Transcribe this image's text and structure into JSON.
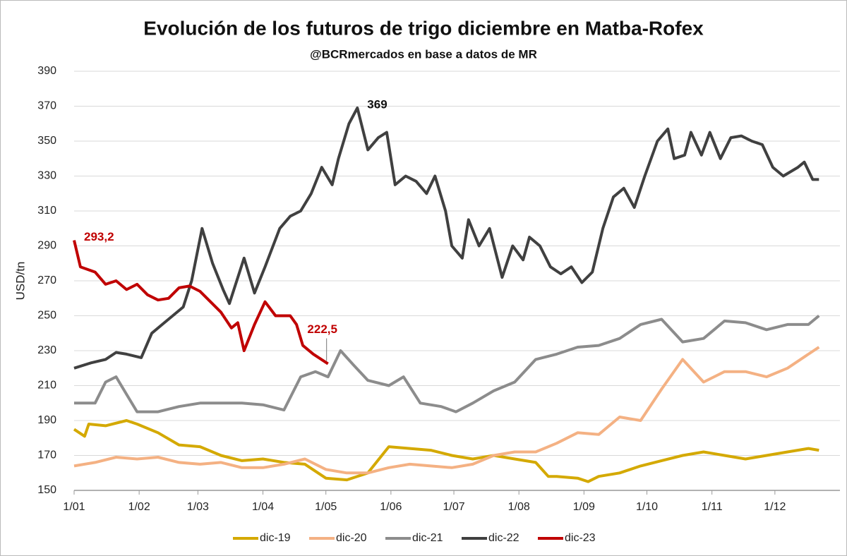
{
  "chart_data": {
    "type": "line",
    "title": "Evolución de los futuros de trigo diciembre en Matba-Rofex",
    "subtitle": "@BCRmercados  en base a datos de MR",
    "y_label": "USD/tn",
    "xlim": [
      0,
      365
    ],
    "xticks": [
      {
        "value": 0,
        "label": "1/01"
      },
      {
        "value": 31,
        "label": "1/02"
      },
      {
        "value": 59,
        "label": "1/03"
      },
      {
        "value": 90,
        "label": "1/04"
      },
      {
        "value": 120,
        "label": "1/05"
      },
      {
        "value": 151,
        "label": "1/06"
      },
      {
        "value": 181,
        "label": "1/07"
      },
      {
        "value": 212,
        "label": "1/08"
      },
      {
        "value": 243,
        "label": "1/09"
      },
      {
        "value": 273,
        "label": "1/10"
      },
      {
        "value": 304,
        "label": "1/11"
      },
      {
        "value": 334,
        "label": "1/12"
      }
    ],
    "ylim": [
      150,
      390
    ],
    "yticks": [
      150,
      170,
      190,
      210,
      230,
      250,
      270,
      290,
      310,
      330,
      350,
      370,
      390
    ],
    "grid": true,
    "legend": "bottom",
    "series": [
      {
        "name": "dic-19",
        "color": "#d4a900",
        "x": [
          0,
          5,
          7,
          15,
          25,
          30,
          40,
          50,
          60,
          70,
          80,
          90,
          100,
          110,
          120,
          130,
          140,
          150,
          160,
          170,
          180,
          190,
          200,
          210,
          220,
          226,
          230,
          240,
          245,
          250,
          260,
          270,
          280,
          290,
          300,
          310,
          320,
          330,
          340,
          350,
          355
        ],
        "values": [
          185,
          181,
          188,
          187,
          190,
          188,
          183,
          176,
          175,
          170,
          167,
          168,
          166,
          165,
          157,
          156,
          160,
          175,
          174,
          173,
          170,
          168,
          170,
          168,
          166,
          158,
          158,
          157,
          155,
          158,
          160,
          164,
          167,
          170,
          172,
          170,
          168,
          170,
          172,
          174,
          173
        ]
      },
      {
        "name": "dic-20",
        "color": "#f4b183",
        "x": [
          0,
          10,
          20,
          30,
          40,
          50,
          60,
          70,
          80,
          90,
          100,
          110,
          120,
          130,
          140,
          150,
          160,
          170,
          180,
          190,
          200,
          210,
          220,
          230,
          240,
          250,
          260,
          270,
          280,
          290,
          300,
          310,
          320,
          330,
          340,
          350,
          355
        ],
        "values": [
          164,
          166,
          169,
          168,
          169,
          166,
          165,
          166,
          163,
          163,
          165,
          168,
          162,
          160,
          160,
          163,
          165,
          164,
          163,
          165,
          170,
          172,
          172,
          177,
          183,
          182,
          192,
          190,
          208,
          225,
          212,
          218,
          218,
          215,
          220,
          228,
          232
        ]
      },
      {
        "name": "dic-21",
        "color": "#8c8c8c",
        "x": [
          0,
          10,
          15,
          20,
          25,
          30,
          40,
          50,
          60,
          70,
          80,
          90,
          100,
          108,
          115,
          121,
          127,
          133,
          140,
          150,
          157,
          165,
          175,
          182,
          190,
          200,
          210,
          220,
          230,
          240,
          250,
          260,
          270,
          280,
          290,
          300,
          310,
          320,
          330,
          340,
          350,
          355
        ],
        "values": [
          200,
          200,
          212,
          215,
          205,
          195,
          195,
          198,
          200,
          200,
          200,
          199,
          196,
          215,
          218,
          215,
          230,
          222,
          213,
          210,
          215,
          200,
          198,
          195,
          200,
          207,
          212,
          225,
          228,
          232,
          233,
          237,
          245,
          248,
          235,
          237,
          247,
          246,
          242,
          245,
          245,
          250
        ]
      },
      {
        "name": "dic-22",
        "color": "#404040",
        "x": [
          0,
          8,
          15,
          20,
          25,
          32,
          37,
          42,
          47,
          52,
          56,
          61,
          66,
          71,
          74,
          81,
          86,
          91,
          98,
          103,
          108,
          113,
          118,
          123,
          126,
          131,
          135,
          140,
          145,
          149,
          153,
          158,
          163,
          168,
          172,
          177,
          180,
          185,
          188,
          193,
          198,
          204,
          209,
          214,
          217,
          222,
          227,
          232,
          237,
          242,
          247,
          252,
          257,
          262,
          267,
          272,
          278,
          283,
          286,
          291,
          294,
          299,
          303,
          308,
          313,
          318,
          323,
          328,
          333,
          338,
          345,
          348,
          352,
          355
        ],
        "values": [
          220,
          223,
          225,
          229,
          228,
          226,
          240,
          245,
          250,
          255,
          270,
          300,
          280,
          265,
          257,
          283,
          263,
          278,
          300,
          307,
          310,
          320,
          335,
          325,
          340,
          360,
          369,
          345,
          352,
          355,
          325,
          330,
          327,
          320,
          330,
          310,
          290,
          283,
          305,
          290,
          300,
          272,
          290,
          282,
          295,
          290,
          278,
          274,
          278,
          269,
          275,
          300,
          318,
          323,
          312,
          330,
          350,
          357,
          340,
          342,
          355,
          342,
          355,
          340,
          352,
          353,
          350,
          348,
          335,
          330,
          335,
          338,
          328,
          328
        ],
        "value_labels": [
          null,
          null,
          null,
          null,
          null,
          null,
          null,
          null,
          null,
          null,
          null,
          null,
          null,
          null,
          null,
          null,
          null,
          null,
          null,
          null,
          null,
          null,
          null,
          null,
          null,
          null,
          "369",
          null,
          null,
          null,
          null,
          null,
          null,
          null,
          null,
          null,
          null,
          null,
          null,
          null,
          null,
          null,
          null,
          null,
          null,
          null,
          null,
          null,
          null,
          null,
          null,
          null,
          null,
          null,
          null,
          null,
          null,
          null,
          null,
          null,
          null,
          null,
          null,
          null,
          null,
          null,
          null,
          null,
          null,
          null,
          null,
          null,
          null,
          null
        ]
      },
      {
        "name": "dic-23",
        "color": "#c00000",
        "x": [
          0,
          3,
          10,
          15,
          20,
          25,
          30,
          35,
          40,
          45,
          50,
          55,
          60,
          65,
          70,
          75,
          78,
          81,
          86,
          91,
          96,
          103,
          106,
          109,
          114,
          121
        ],
        "values": [
          293.2,
          278,
          275,
          268,
          270,
          265,
          268,
          262,
          259,
          260,
          266,
          267,
          264,
          258,
          252,
          243,
          246,
          230,
          245,
          258,
          250,
          250,
          245,
          233,
          228,
          222.5
        ],
        "value_labels": [
          "293,2",
          null,
          null,
          null,
          null,
          null,
          null,
          null,
          null,
          null,
          null,
          null,
          null,
          null,
          null,
          null,
          null,
          null,
          null,
          null,
          null,
          null,
          null,
          null,
          null,
          "222,5"
        ]
      }
    ]
  }
}
